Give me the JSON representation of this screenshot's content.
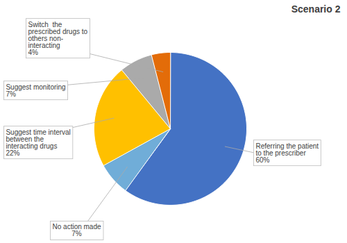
{
  "chart_data": {
    "type": "pie",
    "title": "Scenario 2",
    "categories": [
      "Referring the patient\nto the prescriber\n60%",
      "No action made\n7%",
      "Suggest time interval\nbetween the\ninteracting drugs\n22%",
      "Suggest monitoring\n7%",
      "Switch  the\nprescribed drugs to\nothers non-\ninteracting\n4%"
    ],
    "values": [
      60,
      7,
      22,
      7,
      4
    ],
    "colors": [
      "#4472C4",
      "#70ADD8",
      "#FFC000",
      "#AAAAAA",
      "#E36C09"
    ]
  }
}
